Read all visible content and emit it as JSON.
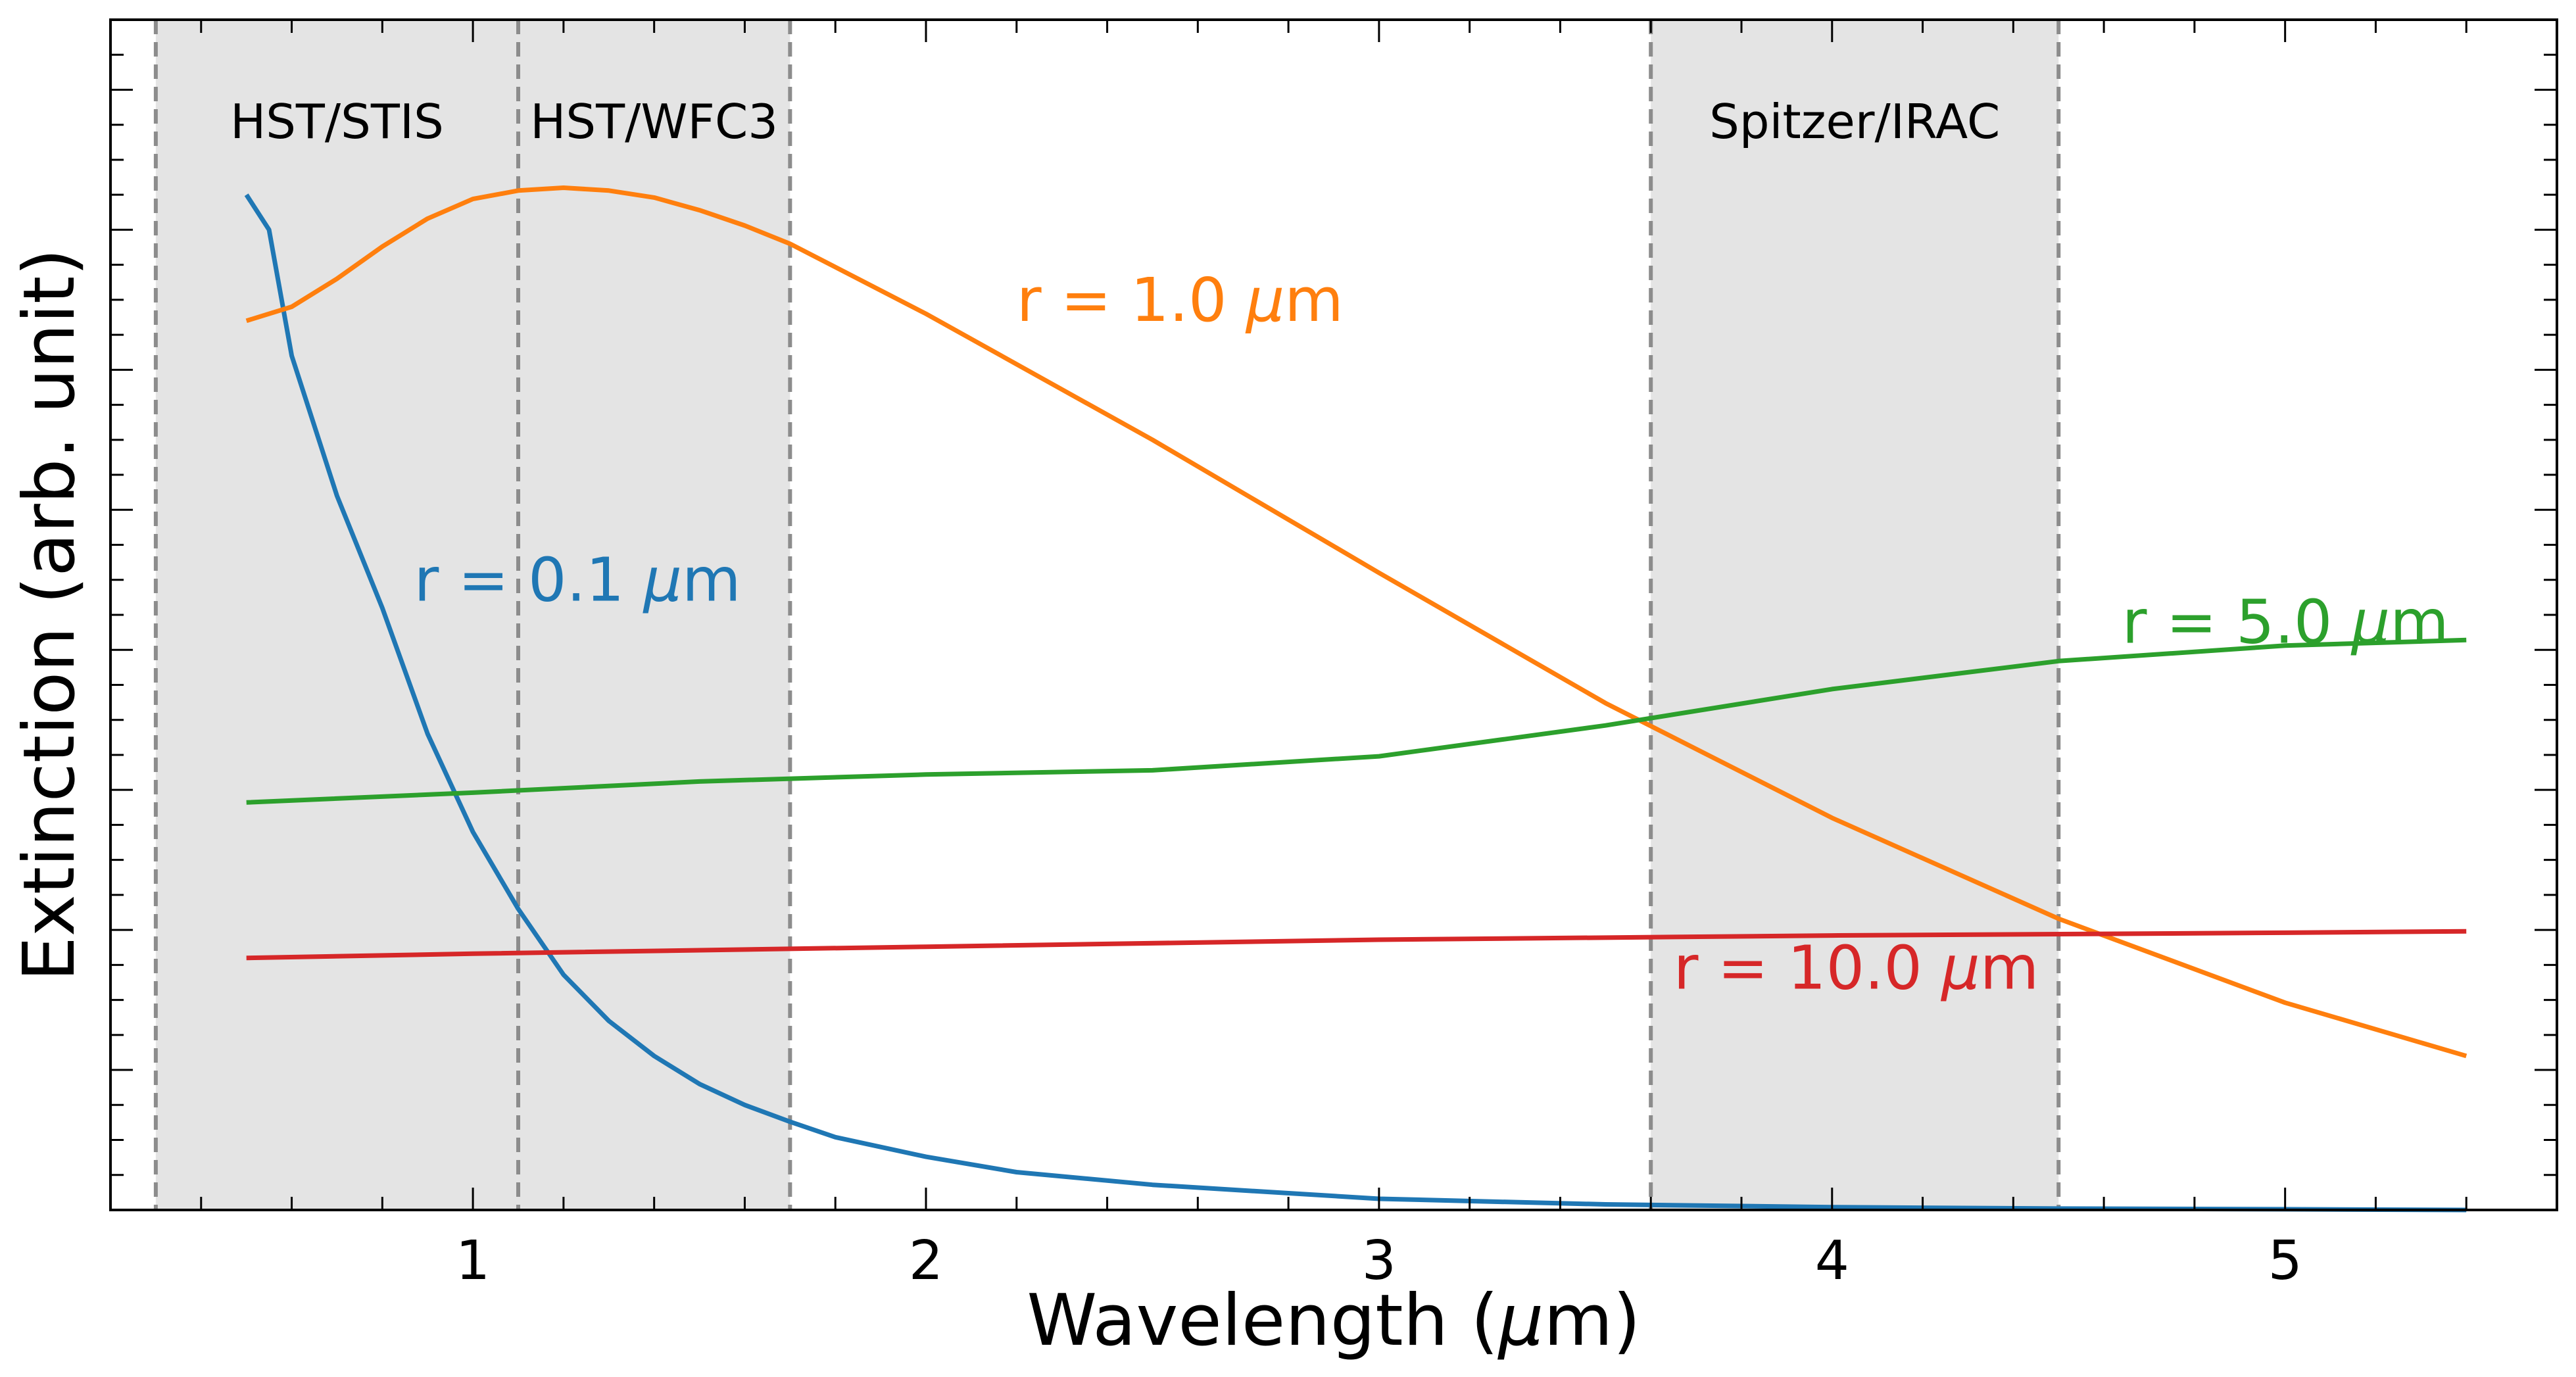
{
  "chart_data": {
    "type": "line",
    "xlabel": "Wavelength (μm)",
    "ylabel": "Extinction (arb. unit)",
    "xlim": [
      0.2,
      5.6
    ],
    "ylim": [
      0,
      8.5
    ],
    "x_ticks": [
      1,
      2,
      3,
      4,
      5
    ],
    "x_tick_labels": [
      "1",
      "2",
      "3",
      "4",
      "5"
    ],
    "y_tick_labels_shown": false,
    "grid": false,
    "legend": "none (inline labels)",
    "bands": [
      {
        "label": "HST/STIS",
        "x_start": 0.3,
        "x_end": 1.1
      },
      {
        "label": "HST/WFC3",
        "x_start": 1.1,
        "x_end": 1.7
      },
      {
        "label": "Spitzer/IRAC",
        "x_start": 3.6,
        "x_end": 4.5
      }
    ],
    "series": [
      {
        "name": "r = 0.1 μm",
        "color": "#1f77b4",
        "x": [
          0.5,
          0.55,
          0.6,
          0.7,
          0.8,
          0.9,
          1.0,
          1.1,
          1.2,
          1.3,
          1.4,
          1.5,
          1.6,
          1.7,
          1.8,
          2.0,
          2.2,
          2.5,
          3.0,
          3.5,
          4.0,
          4.5,
          5.0,
          5.4
        ],
        "y": [
          7.25,
          7.0,
          6.1,
          5.1,
          4.3,
          3.4,
          2.7,
          2.15,
          1.68,
          1.35,
          1.1,
          0.9,
          0.75,
          0.63,
          0.52,
          0.38,
          0.27,
          0.18,
          0.08,
          0.04,
          0.02,
          0.01,
          0.005,
          0.0
        ]
      },
      {
        "name": "r = 1.0 μm",
        "color": "#ff7f0e",
        "x": [
          0.5,
          0.6,
          0.7,
          0.8,
          0.9,
          1.0,
          1.1,
          1.2,
          1.3,
          1.4,
          1.5,
          1.6,
          1.7,
          2.0,
          2.5,
          3.0,
          3.5,
          4.0,
          4.5,
          5.0,
          5.4
        ],
        "y": [
          6.35,
          6.45,
          6.65,
          6.88,
          7.08,
          7.22,
          7.28,
          7.3,
          7.28,
          7.23,
          7.14,
          7.03,
          6.9,
          6.4,
          5.5,
          4.55,
          3.62,
          2.8,
          2.08,
          1.48,
          1.1
        ]
      },
      {
        "name": "r = 5.0 μm",
        "color": "#2ca02c",
        "x": [
          0.5,
          1.0,
          1.5,
          2.0,
          2.5,
          3.0,
          3.5,
          4.0,
          4.5,
          5.0,
          5.4
        ],
        "y": [
          2.91,
          2.98,
          3.06,
          3.11,
          3.14,
          3.24,
          3.46,
          3.72,
          3.92,
          4.03,
          4.07
        ]
      },
      {
        "name": "r = 10.0 μm",
        "color": "#d62728",
        "x": [
          0.5,
          1.0,
          2.0,
          3.0,
          4.0,
          5.0,
          5.4
        ],
        "y": [
          1.8,
          1.83,
          1.88,
          1.93,
          1.96,
          1.98,
          1.99
        ]
      }
    ],
    "annotations": [
      {
        "text": "r = 1.0 μm",
        "color": "#ff7f0e",
        "x": 2.2,
        "y": 6.35
      },
      {
        "text": "r = 0.1 μm",
        "color": "#1f77b4",
        "x": 0.87,
        "y": 4.35
      },
      {
        "text": "r = 5.0 μm",
        "color": "#2ca02c",
        "x": 4.64,
        "y": 4.05
      },
      {
        "text": "r = 10.0 μm",
        "color": "#d62728",
        "x": 3.65,
        "y": 1.58
      }
    ]
  }
}
